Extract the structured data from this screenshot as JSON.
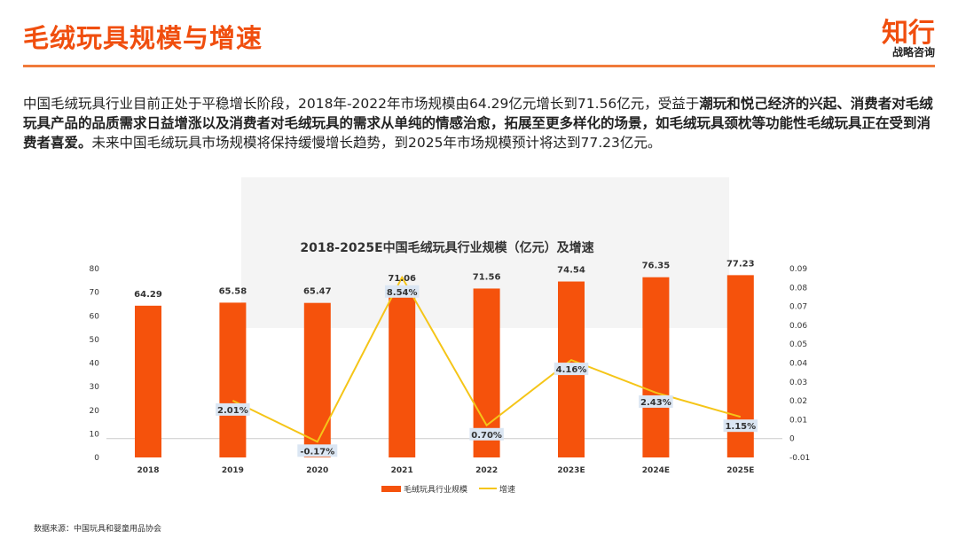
{
  "header": {
    "title": "毛绒玩具规模与增速",
    "logo_main": "知行",
    "logo_sub": "战略咨询"
  },
  "intro": {
    "part1": "中国毛绒玩具行业目前正处于平稳增长阶段，2018年-2022年市场规模由64.29亿元增长到71.56亿元，受益于",
    "bold": "潮玩和悦己经济的兴起、消费者对毛绒玩具产品的品质需求日益增涨以及消费者对毛绒玩具的需求从单纯的情感治愈，拓展至更多样化的场景，如毛绒玩具颈枕等功能性毛绒玩具正在受到消费者喜爱。",
    "part2": "未来中国毛绒玩具市场规模将保持缓慢增长趋势，到2025年市场规模预计将达到77.23亿元。"
  },
  "chart_data": {
    "type": "bar+line",
    "title": "2018-2025E中国毛绒玩具行业规模（亿元）及增速",
    "categories": [
      "2018",
      "2019",
      "2020",
      "2021",
      "2022",
      "2023E",
      "2024E",
      "2025E"
    ],
    "series": [
      {
        "name": "毛绒玩具行业规模",
        "type": "bar",
        "axis": "left",
        "color": "#f5520c",
        "values": [
          64.29,
          65.58,
          65.47,
          71.06,
          71.56,
          74.54,
          76.35,
          77.23
        ],
        "labels": [
          "64.29",
          "65.58",
          "65.47",
          "71.06",
          "71.56",
          "74.54",
          "76.35",
          "77.23"
        ]
      },
      {
        "name": "增速",
        "type": "line",
        "axis": "right",
        "color": "#f5c518",
        "values": [
          null,
          0.0201,
          -0.0017,
          0.0854,
          0.007,
          0.0416,
          0.0243,
          0.0115
        ],
        "labels": [
          "",
          "2.01%",
          "-0.17%",
          "8.54%",
          "0.70%",
          "4.16%",
          "2.43%",
          "1.15%"
        ]
      }
    ],
    "left_axis": {
      "min": 0,
      "max": 80,
      "ticks": [
        "0",
        "10",
        "20",
        "30",
        "40",
        "50",
        "60",
        "70",
        "80"
      ]
    },
    "right_axis": {
      "min": -0.01,
      "max": 0.09,
      "ticks": [
        "-0.01",
        "0",
        "0.01",
        "0.02",
        "0.03",
        "0.04",
        "0.05",
        "0.06",
        "0.07",
        "0.08",
        "0.09"
      ]
    },
    "legend": "bottom",
    "grid": false
  },
  "footer": {
    "source": "数据来源：中国玩具和婴童用品协会"
  }
}
